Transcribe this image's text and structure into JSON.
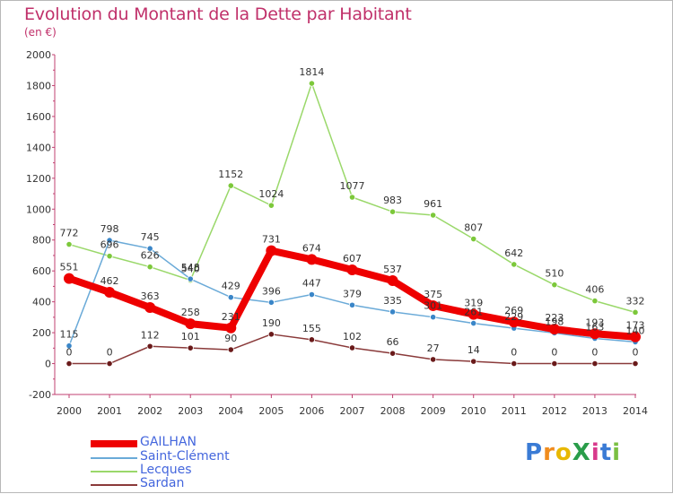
{
  "title": "Evolution du Montant de la Dette par Habitant",
  "unit": "(en €)",
  "logo": {
    "text": "ProXiti",
    "letters": [
      {
        "c": "P",
        "color": "#3a7bd5"
      },
      {
        "c": "r",
        "color": "#f08c1e"
      },
      {
        "c": "o",
        "color": "#e8b800"
      },
      {
        "c": "X",
        "color": "#2a9d4a"
      },
      {
        "c": "i",
        "color": "#d83a8c"
      },
      {
        "c": "t",
        "color": "#3a7bd5"
      },
      {
        "c": "i",
        "color": "#7bc043"
      }
    ]
  },
  "chart_data": {
    "type": "line",
    "categories": [
      "2000",
      "2001",
      "2002",
      "2003",
      "2004",
      "2005",
      "2006",
      "2007",
      "2008",
      "2009",
      "2010",
      "2011",
      "2012",
      "2013",
      "2014"
    ],
    "ylim": [
      -200,
      2000
    ],
    "yticks": [
      "-200",
      "0",
      "200",
      "400",
      "600",
      "800",
      "1000",
      "1200",
      "1400",
      "1600",
      "1800",
      "2000"
    ],
    "grid": false,
    "legend_position": "bottom-left",
    "series": [
      {
        "name": "GAILHAN",
        "color": "#ee0000",
        "marker": "#ee0000",
        "width": 8,
        "values": [
          551,
          462,
          363,
          258,
          231,
          731,
          674,
          607,
          537,
          375,
          319,
          269,
          223,
          193,
          173
        ],
        "labels": [
          "551",
          "462",
          "363",
          "258",
          "231",
          "731",
          "674",
          "607",
          "537",
          "375",
          "319",
          "269",
          "223",
          "193",
          "173"
        ]
      },
      {
        "name": "Saint-Clément",
        "color": "#6aaad8",
        "marker": "#3a86c8",
        "width": 1.5,
        "values": [
          115,
          798,
          745,
          548,
          429,
          396,
          447,
          379,
          335,
          301,
          261,
          229,
          198,
          163,
          140
        ],
        "labels": [
          "115",
          "798",
          "745",
          "548",
          "429",
          "396",
          "447",
          "379",
          "335",
          "301",
          "261",
          "229",
          "198",
          "163",
          "140"
        ]
      },
      {
        "name": "Lecques",
        "color": "#9ad86a",
        "marker": "#7cc83a",
        "width": 1.5,
        "values": [
          772,
          696,
          626,
          540,
          1152,
          1024,
          1814,
          1077,
          983,
          961,
          807,
          642,
          510,
          406,
          332
        ],
        "labels": [
          "772",
          "696",
          "626",
          "540",
          "1152",
          "1024",
          "1814",
          "1077",
          "983",
          "961",
          "807",
          "642",
          "510",
          "406",
          "332"
        ]
      },
      {
        "name": "Sardan",
        "color": "#8a3a3a",
        "marker": "#6a1a1a",
        "width": 1.5,
        "values": [
          0,
          0,
          112,
          101,
          90,
          190,
          155,
          102,
          66,
          27,
          14,
          0,
          0,
          0,
          0
        ],
        "labels": [
          "0",
          "0",
          "112",
          "101",
          "90",
          "190",
          "155",
          "102",
          "66",
          "27",
          "14",
          "0",
          "0",
          "0",
          "0"
        ]
      }
    ]
  }
}
